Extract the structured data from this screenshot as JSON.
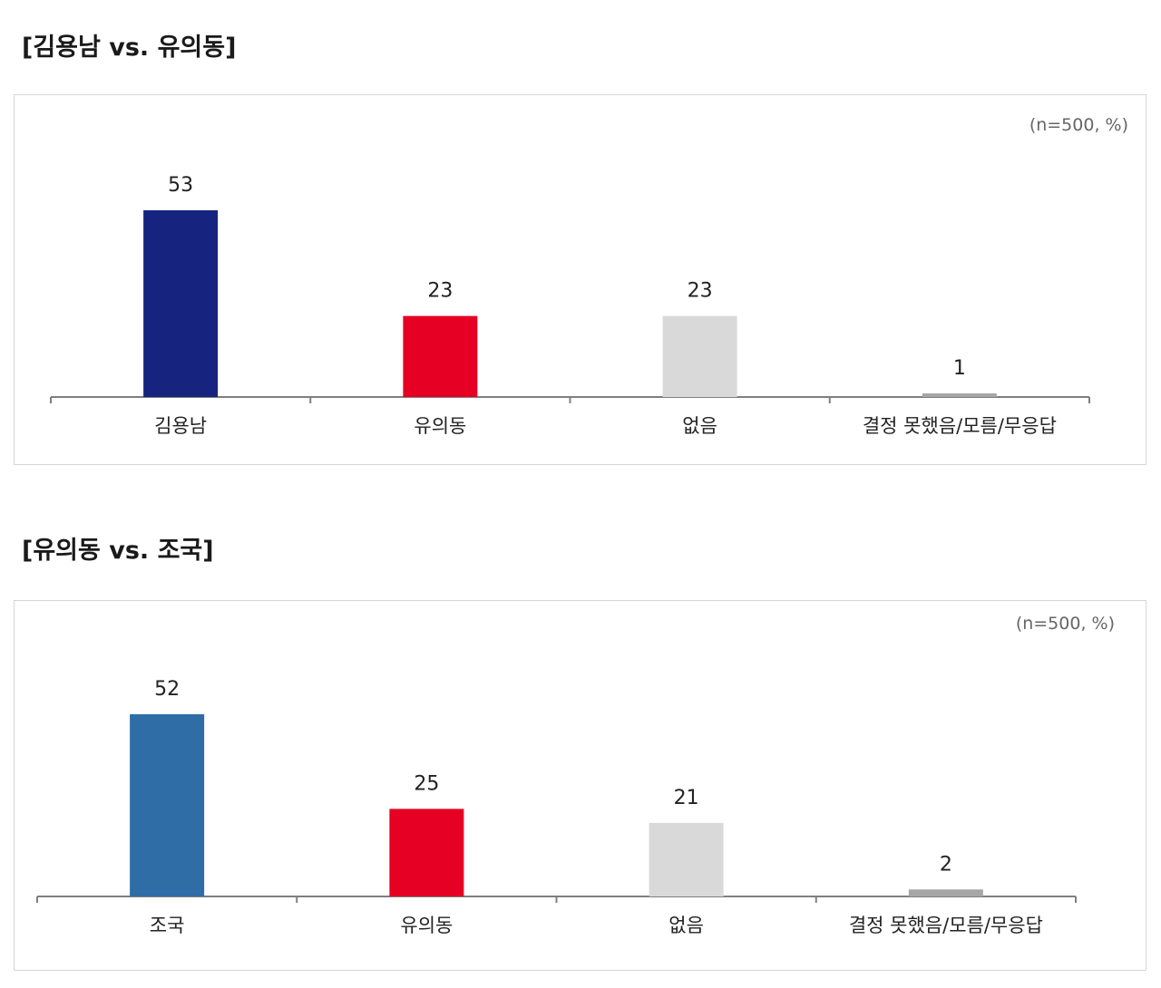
{
  "chart_data": [
    {
      "type": "bar",
      "title": "[김용남 vs. 유의동]",
      "unit_note": "(n=500, %)",
      "categories": [
        "김용남",
        "유의동",
        "없음",
        "결정 못했음/모름/무응답"
      ],
      "values": [
        53,
        23,
        23,
        1
      ],
      "colors": [
        "#16237f",
        "#e60023",
        "#d9d9d9",
        "#a6a6a6"
      ],
      "ylim": [
        0,
        53
      ],
      "grid": false,
      "legend": "none"
    },
    {
      "type": "bar",
      "title": "[유의동 vs. 조국]",
      "unit_note": "(n=500, %)",
      "categories": [
        "조국",
        "유의동",
        "없음",
        "결정 못했음/모름/무응답"
      ],
      "values": [
        52,
        25,
        21,
        2
      ],
      "colors": [
        "#2e6da6",
        "#e60023",
        "#d9d9d9",
        "#a6a6a6"
      ],
      "ylim": [
        0,
        52
      ],
      "grid": false,
      "legend": "none"
    }
  ]
}
